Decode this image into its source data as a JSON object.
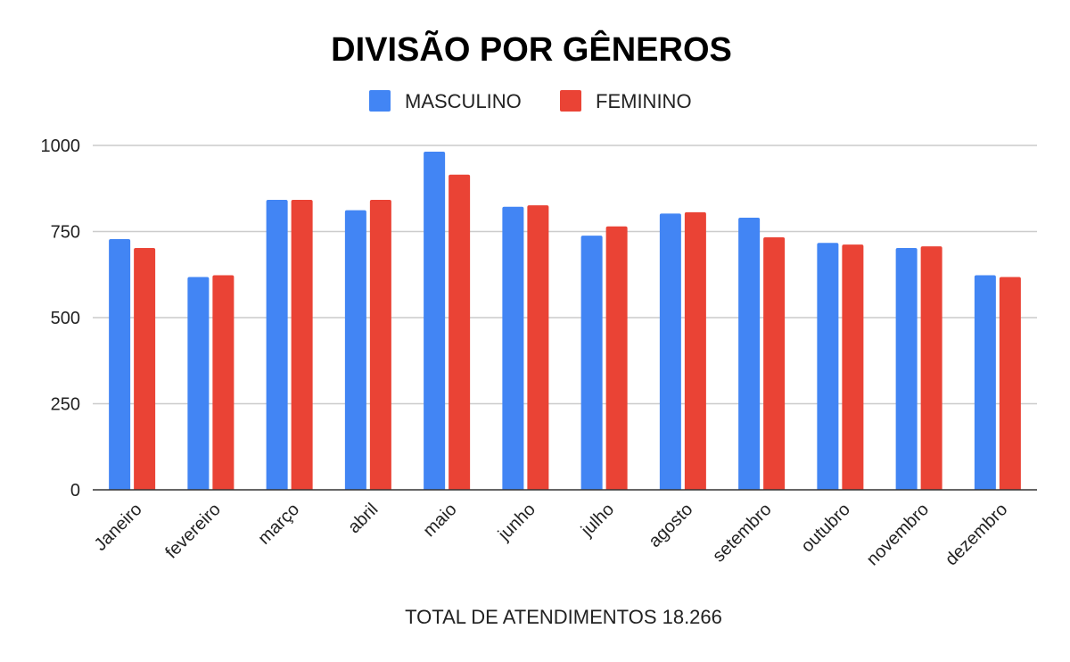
{
  "chart_data": {
    "type": "bar",
    "title": "DIVISÃO POR GÊNEROS",
    "xlabel": "TOTAL DE ATENDIMENTOS 18.266",
    "ylabel": "",
    "ylim": [
      0,
      1000
    ],
    "yticks": [
      0,
      250,
      500,
      750,
      1000
    ],
    "grid": true,
    "legend_position": "top-center",
    "categories": [
      "Janeiro",
      "fevereiro",
      "março",
      "abril",
      "maio",
      "junho",
      "julho",
      "agosto",
      "setembro",
      "outubro",
      "novembro",
      "dezembro"
    ],
    "series": [
      {
        "name": "MASCULINO",
        "color": "#4285f4",
        "values": [
          728,
          618,
          842,
          812,
          982,
          822,
          738,
          802,
          790,
          717,
          702,
          623
        ]
      },
      {
        "name": "FEMININO",
        "color": "#ea4335",
        "values": [
          702,
          623,
          842,
          842,
          915,
          826,
          765,
          806,
          733,
          712,
          707,
          618
        ]
      }
    ]
  }
}
